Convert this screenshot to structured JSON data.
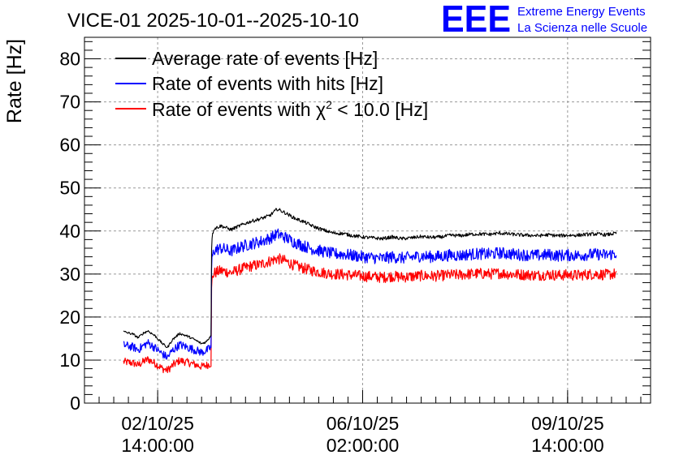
{
  "chart_data": {
    "type": "line",
    "title": "VICE-01 2025-10-01--2025-10-10",
    "ylabel": "Rate [Hz]",
    "xlabel": "",
    "ylim": [
      0,
      85
    ],
    "yticks": [
      0,
      10,
      20,
      30,
      40,
      50,
      60,
      70,
      80
    ],
    "x_unit": "hours since 2025-10-01 00:00",
    "xlim": [
      8,
      240
    ],
    "xticks": [
      {
        "x": 38,
        "label_date": "02/10/25",
        "label_time": "14:00:00"
      },
      {
        "x": 122,
        "label_date": "06/10/25",
        "label_time": "02:00:00"
      },
      {
        "x": 206,
        "label_date": "09/10/25",
        "label_time": "14:00:00"
      }
    ],
    "grid": true,
    "legend_position": "top-left",
    "series": [
      {
        "name": "Average rate of events [Hz]",
        "color": "#000000",
        "noise": 0.4,
        "points": [
          [
            24,
            16.6
          ],
          [
            28,
            16.0
          ],
          [
            30,
            15.2
          ],
          [
            32,
            16.2
          ],
          [
            34,
            16.8
          ],
          [
            37,
            15.6
          ],
          [
            40,
            13.8
          ],
          [
            42,
            12.9
          ],
          [
            44,
            14.7
          ],
          [
            47,
            16.2
          ],
          [
            50,
            15.6
          ],
          [
            53,
            14.8
          ],
          [
            56,
            13.8
          ],
          [
            58,
            14.3
          ],
          [
            59.9,
            15.8
          ],
          [
            60.1,
            38.0
          ],
          [
            61,
            40.5
          ],
          [
            64,
            41.2
          ],
          [
            68,
            40.3
          ],
          [
            72,
            41.3
          ],
          [
            76,
            42.2
          ],
          [
            80,
            42.8
          ],
          [
            84,
            43.6
          ],
          [
            87,
            45.1
          ],
          [
            90,
            44.3
          ],
          [
            94,
            43.0
          ],
          [
            98,
            42.1
          ],
          [
            102,
            41.0
          ],
          [
            106,
            40.2
          ],
          [
            110,
            39.5
          ],
          [
            114,
            39.4
          ],
          [
            118,
            38.9
          ],
          [
            122,
            38.6
          ],
          [
            126,
            38.4
          ],
          [
            130,
            38.2
          ],
          [
            134,
            38.6
          ],
          [
            138,
            38.2
          ],
          [
            142,
            38.4
          ],
          [
            146,
            38.7
          ],
          [
            150,
            38.5
          ],
          [
            154,
            38.6
          ],
          [
            158,
            39.0
          ],
          [
            162,
            38.9
          ],
          [
            166,
            39.2
          ],
          [
            170,
            39.3
          ],
          [
            174,
            39.2
          ],
          [
            178,
            39.5
          ],
          [
            182,
            39.3
          ],
          [
            186,
            39.1
          ],
          [
            190,
            39.0
          ],
          [
            194,
            38.9
          ],
          [
            198,
            39.1
          ],
          [
            202,
            38.9
          ],
          [
            206,
            39.0
          ],
          [
            210,
            39.0
          ],
          [
            214,
            39.2
          ],
          [
            218,
            39.3
          ],
          [
            222,
            39.1
          ],
          [
            226,
            39.5
          ]
        ]
      },
      {
        "name": "Rate of events with hits [Hz]",
        "color": "#0000ff",
        "noise": 1.4,
        "points": [
          [
            24,
            13.5
          ],
          [
            28,
            13.0
          ],
          [
            30,
            12.4
          ],
          [
            32,
            13.3
          ],
          [
            34,
            14.0
          ],
          [
            37,
            12.8
          ],
          [
            40,
            11.4
          ],
          [
            42,
            10.6
          ],
          [
            44,
            12.2
          ],
          [
            47,
            13.6
          ],
          [
            50,
            13.0
          ],
          [
            53,
            12.4
          ],
          [
            56,
            11.8
          ],
          [
            58,
            12.2
          ],
          [
            59.9,
            13.0
          ],
          [
            60.1,
            33.0
          ],
          [
            61,
            35.5
          ],
          [
            64,
            36.0
          ],
          [
            68,
            35.3
          ],
          [
            72,
            36.3
          ],
          [
            76,
            37.0
          ],
          [
            80,
            37.5
          ],
          [
            84,
            38.3
          ],
          [
            87,
            39.3
          ],
          [
            90,
            38.6
          ],
          [
            94,
            37.4
          ],
          [
            98,
            36.5
          ],
          [
            102,
            35.7
          ],
          [
            106,
            35.2
          ],
          [
            110,
            34.7
          ],
          [
            114,
            34.6
          ],
          [
            118,
            34.3
          ],
          [
            122,
            34.0
          ],
          [
            126,
            33.8
          ],
          [
            130,
            33.6
          ],
          [
            134,
            34.0
          ],
          [
            138,
            33.7
          ],
          [
            142,
            33.9
          ],
          [
            146,
            34.2
          ],
          [
            150,
            34.0
          ],
          [
            154,
            34.1
          ],
          [
            158,
            34.4
          ],
          [
            162,
            34.3
          ],
          [
            166,
            34.6
          ],
          [
            170,
            34.7
          ],
          [
            174,
            34.6
          ],
          [
            178,
            34.9
          ],
          [
            182,
            34.7
          ],
          [
            186,
            34.5
          ],
          [
            190,
            34.4
          ],
          [
            194,
            34.3
          ],
          [
            198,
            34.5
          ],
          [
            202,
            34.3
          ],
          [
            206,
            34.4
          ],
          [
            210,
            34.3
          ],
          [
            214,
            34.5
          ],
          [
            218,
            34.6
          ],
          [
            222,
            34.4
          ],
          [
            226,
            34.8
          ]
        ]
      },
      {
        "name": "Rate of events with χ² < 10.0 [Hz]",
        "color": "#ff0000",
        "noise": 1.3,
        "points": [
          [
            24,
            9.6
          ],
          [
            28,
            9.3
          ],
          [
            30,
            8.8
          ],
          [
            32,
            9.6
          ],
          [
            34,
            10.2
          ],
          [
            37,
            9.2
          ],
          [
            40,
            8.0
          ],
          [
            42,
            7.6
          ],
          [
            44,
            8.7
          ],
          [
            47,
            9.9
          ],
          [
            50,
            9.5
          ],
          [
            53,
            9.0
          ],
          [
            56,
            8.5
          ],
          [
            58,
            8.8
          ],
          [
            59.9,
            9.2
          ],
          [
            60.1,
            28.0
          ],
          [
            61,
            30.2
          ],
          [
            64,
            30.8
          ],
          [
            68,
            30.3
          ],
          [
            72,
            31.1
          ],
          [
            76,
            31.8
          ],
          [
            80,
            32.2
          ],
          [
            84,
            33.0
          ],
          [
            87,
            33.6
          ],
          [
            90,
            33.1
          ],
          [
            94,
            32.0
          ],
          [
            98,
            31.3
          ],
          [
            102,
            30.7
          ],
          [
            106,
            30.3
          ],
          [
            110,
            30.0
          ],
          [
            114,
            29.9
          ],
          [
            118,
            29.7
          ],
          [
            122,
            29.5
          ],
          [
            126,
            29.4
          ],
          [
            130,
            29.2
          ],
          [
            134,
            29.5
          ],
          [
            138,
            29.3
          ],
          [
            142,
            29.4
          ],
          [
            146,
            29.6
          ],
          [
            150,
            29.5
          ],
          [
            154,
            29.6
          ],
          [
            158,
            29.8
          ],
          [
            162,
            29.8
          ],
          [
            166,
            30.0
          ],
          [
            170,
            30.1
          ],
          [
            174,
            30.0
          ],
          [
            178,
            30.2
          ],
          [
            182,
            30.0
          ],
          [
            186,
            29.9
          ],
          [
            190,
            29.8
          ],
          [
            194,
            29.7
          ],
          [
            198,
            29.9
          ],
          [
            202,
            29.7
          ],
          [
            206,
            29.8
          ],
          [
            210,
            29.7
          ],
          [
            214,
            29.9
          ],
          [
            218,
            30.0
          ],
          [
            222,
            29.8
          ],
          [
            226,
            30.1
          ]
        ]
      }
    ]
  },
  "legend": {
    "entries": [
      {
        "label": "Average rate of events [Hz]",
        "color": "#000000"
      },
      {
        "label": "Rate of events with hits [Hz]",
        "color": "#0000ff"
      },
      {
        "label_prefix": "Rate of events with ",
        "label_symbol": "χ",
        "label_sup": "2",
        "label_suffix": " < 10.0 [Hz]",
        "color": "#ff0000"
      }
    ]
  },
  "logo": {
    "letters": "EEE",
    "line1": "Extreme Energy Events",
    "line2": "La Scienza nelle Scuole",
    "color": "#0000ff"
  }
}
